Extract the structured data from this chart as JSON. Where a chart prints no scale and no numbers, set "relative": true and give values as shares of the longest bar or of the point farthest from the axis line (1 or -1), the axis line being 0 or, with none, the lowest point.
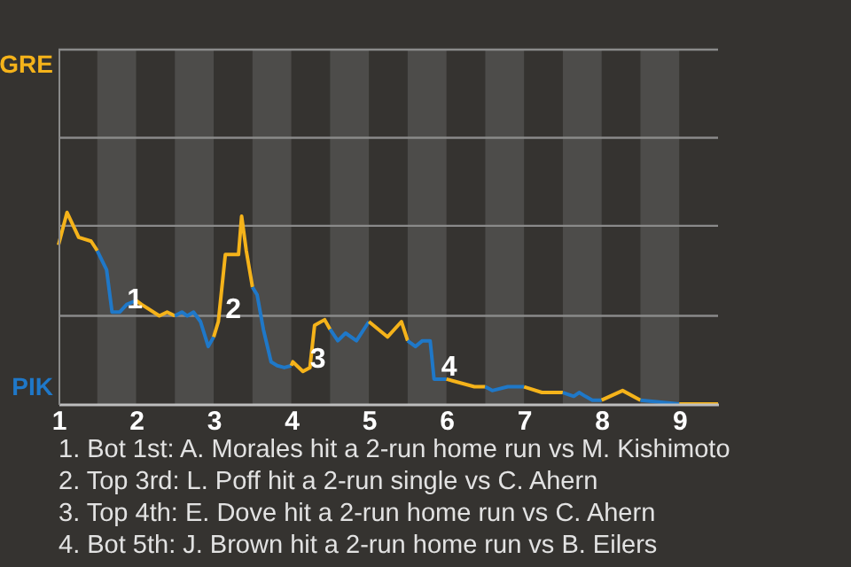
{
  "chart_data": {
    "type": "line",
    "relative": true,
    "xlim": [
      1,
      9.5
    ],
    "xticks": [
      1,
      2,
      3,
      4,
      5,
      6,
      7,
      8,
      9
    ],
    "ref_lines": [
      {
        "axis": "y",
        "value": 0.46,
        "color": "#8a8a8a"
      },
      {
        "axis": "y",
        "value": 0.93,
        "color": "#8a8a8a"
      },
      {
        "axis": "y",
        "value": 1.39,
        "color": "#8a8a8a"
      },
      {
        "axis": "y",
        "value": 1.85,
        "color": "#8a8a8a"
      }
    ],
    "series": [
      {
        "color": "#f5b31a",
        "x": [
          1,
          1.11,
          1.26,
          1.42,
          1.5
        ],
        "values": [
          0.83,
          1,
          0.87,
          0.85,
          0.8
        ]
      },
      {
        "color": "#1f78c8",
        "x": [
          1.5,
          1.62,
          1.69,
          1.79,
          1.88,
          2
        ],
        "values": [
          0.8,
          0.7,
          0.48,
          0.48,
          0.52,
          0.54
        ]
      },
      {
        "color": "#f5b31a",
        "x": [
          2,
          2.07,
          2.3,
          2.4,
          2.5
        ],
        "values": [
          0.54,
          0.52,
          0.46,
          0.48,
          0.46
        ]
      },
      {
        "color": "#1f78c8",
        "x": [
          2.5,
          2.59,
          2.66,
          2.74,
          2.83,
          2.93,
          3
        ],
        "values": [
          0.46,
          0.48,
          0.46,
          0.48,
          0.43,
          0.3,
          0.35
        ]
      },
      {
        "color": "#f5b31a",
        "x": [
          3,
          3.06,
          3.15,
          3.32,
          3.36,
          3.42,
          3.5
        ],
        "values": [
          0.35,
          0.43,
          0.78,
          0.78,
          0.98,
          0.8,
          0.61
        ]
      },
      {
        "color": "#1f78c8",
        "x": [
          3.5,
          3.56,
          3.64,
          3.74,
          3.82,
          3.91,
          4
        ],
        "values": [
          0.61,
          0.57,
          0.39,
          0.22,
          0.2,
          0.19,
          0.2
        ]
      },
      {
        "color": "#f5b31a",
        "x": [
          4,
          4.02,
          4.15,
          4.24,
          4.3,
          4.43,
          4.5
        ],
        "values": [
          0.2,
          0.22,
          0.17,
          0.19,
          0.41,
          0.44,
          0.39
        ]
      },
      {
        "color": "#1f78c8",
        "x": [
          4.5,
          4.6,
          4.7,
          4.84,
          5
        ],
        "values": [
          0.39,
          0.33,
          0.37,
          0.33,
          0.43
        ]
      },
      {
        "color": "#f5b31a",
        "x": [
          5,
          5.24,
          5.42,
          5.5
        ],
        "values": [
          0.43,
          0.35,
          0.43,
          0.33
        ]
      },
      {
        "color": "#1f78c8",
        "x": [
          5.5,
          5.6,
          5.69,
          5.79,
          5.84,
          5.93,
          6
        ],
        "values": [
          0.33,
          0.3,
          0.33,
          0.33,
          0.13,
          0.13,
          0.13
        ]
      },
      {
        "color": "#f5b31a",
        "x": [
          6,
          6.36,
          6.5
        ],
        "values": [
          0.13,
          0.09,
          0.09
        ]
      },
      {
        "color": "#1f78c8",
        "x": [
          6.5,
          6.59,
          6.79,
          7
        ],
        "values": [
          0.09,
          0.07,
          0.09,
          0.09
        ]
      },
      {
        "color": "#f5b31a",
        "x": [
          7,
          7.23,
          7.5
        ],
        "values": [
          0.09,
          0.06,
          0.06
        ]
      },
      {
        "color": "#1f78c8",
        "x": [
          7.5,
          7.64,
          7.71,
          7.79,
          7.88,
          8
        ],
        "values": [
          0.06,
          0.04,
          0.06,
          0.04,
          0.02,
          0.02
        ]
      },
      {
        "color": "#f5b31a",
        "x": [
          8,
          8.27,
          8.5
        ],
        "values": [
          0.02,
          0.07,
          0.02
        ]
      },
      {
        "color": "#1f78c8",
        "x": [
          8.5,
          9
        ],
        "values": [
          0.02,
          0
        ]
      },
      {
        "color": "#f5b31a",
        "x": [
          9,
          9.5
        ],
        "values": [
          0,
          0
        ]
      }
    ],
    "bands": [
      {
        "axis": "x",
        "from": 1.5,
        "to": 2,
        "color": "#4d4c4a"
      },
      {
        "axis": "x",
        "from": 2.5,
        "to": 3,
        "color": "#4d4c4a"
      },
      {
        "axis": "x",
        "from": 3.5,
        "to": 4,
        "color": "#4d4c4a"
      },
      {
        "axis": "x",
        "from": 4.5,
        "to": 5,
        "color": "#4d4c4a"
      },
      {
        "axis": "x",
        "from": 5.5,
        "to": 6,
        "color": "#4d4c4a"
      },
      {
        "axis": "x",
        "from": 6.5,
        "to": 7,
        "color": "#4d4c4a"
      },
      {
        "axis": "x",
        "from": 7.5,
        "to": 8,
        "color": "#4d4c4a"
      },
      {
        "axis": "x",
        "from": 8.5,
        "to": 9,
        "color": "#4d4c4a"
      }
    ],
    "annotations": [
      {
        "text": "1",
        "x": 1.79,
        "y": 0.48
      },
      {
        "text": "2",
        "x": 3.06,
        "y": 0.43
      },
      {
        "text": "3",
        "x": 4.15,
        "y": 0.17
      },
      {
        "text": "4",
        "x": 5.84,
        "y": 0.13
      },
      "GRE",
      "PIK",
      "1. Bot 1st: A. Morales hit a 2-run home run vs M. Kishimoto",
      "2. Top 3rd: L. Poff hit a 2-run single vs C. Ahern",
      "3. Top 4th: E. Dove hit a 2-run home run vs C. Ahern",
      "4. Bot 5th: J. Brown hit a 2-run home run vs B. Eilers"
    ]
  }
}
